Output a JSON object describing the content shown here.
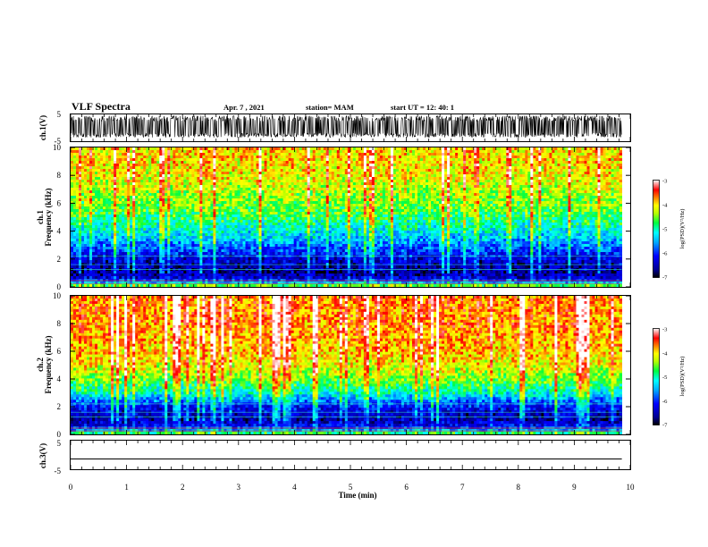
{
  "header": {
    "title": "VLF Spectra",
    "date": "Apr. 7 , 2021",
    "station": "station= MAM",
    "start": "start UT = 12: 40: 1"
  },
  "chart_data": [
    {
      "type": "line",
      "name": "ch1-waveform",
      "ylabel": "ch.1(V)",
      "yticks": [
        "5",
        "-5"
      ],
      "ylim": [
        -5,
        5
      ],
      "xlim": [
        0,
        10
      ],
      "description_of_signal": "dense noisy waveform spanning roughly -3.5 to 4.5 V"
    },
    {
      "type": "heatmap",
      "name": "ch1-spectrogram",
      "ylabel": "ch.1\nFrequency (kHz)",
      "ylabel_top": "ch.1",
      "ylabel_bottom": "Frequency (kHz)",
      "ylim": [
        0,
        10
      ],
      "yticks": [
        "0",
        "2",
        "4",
        "6",
        "8",
        "10"
      ],
      "xlim": [
        0,
        9.85
      ],
      "colorbar": {
        "label": "log(PSD)(V²/Hz)",
        "range": [
          -7,
          -3
        ],
        "ticks": [
          "-3",
          "-4",
          "-5",
          "-6",
          "-7"
        ],
        "colors": [
          "#000080",
          "#0000ff",
          "#00a0ff",
          "#00ffff",
          "#00ff60",
          "#c0ff00",
          "#ffff00",
          "#ff8000",
          "#ff0000",
          "#ffffff"
        ]
      },
      "log_psd_profile": {
        "frequency_khz": [
          0.0,
          0.3,
          0.6,
          1.0,
          1.5,
          2.0,
          2.5,
          3.0,
          3.5,
          4.0,
          4.5,
          5.0,
          5.5,
          6.0,
          7.0,
          8.0,
          9.0,
          10.0
        ],
        "typical_log_psd": [
          -4.2,
          -5.5,
          -6.3,
          -6.6,
          -6.5,
          -6.3,
          -6.0,
          -5.7,
          -5.4,
          -5.2,
          -5.0,
          -4.8,
          -4.6,
          -4.5,
          -4.3,
          -4.1,
          -4.0,
          -4.0
        ]
      }
    },
    {
      "type": "heatmap",
      "name": "ch2-spectrogram",
      "ylabel": "ch.2\nFrequency (kHz)",
      "ylabel_top": "ch.2",
      "ylabel_bottom": "Frequency (kHz)",
      "ylim": [
        0,
        10
      ],
      "yticks": [
        "0",
        "2",
        "4",
        "6",
        "8",
        "10"
      ],
      "xlim": [
        0,
        9.85
      ],
      "colorbar": {
        "label": "log(PSD)(V²/Hz)",
        "range": [
          -7,
          -3
        ],
        "ticks": [
          "-3",
          "-4",
          "-5",
          "-6",
          "-7"
        ],
        "colors": [
          "#000080",
          "#0000ff",
          "#00a0ff",
          "#00ffff",
          "#00ff60",
          "#c0ff00",
          "#ffff00",
          "#ff8000",
          "#ff0000",
          "#ffffff"
        ]
      },
      "log_psd_profile": {
        "frequency_khz": [
          0.0,
          0.3,
          0.6,
          1.0,
          1.5,
          2.0,
          2.5,
          3.0,
          3.5,
          4.0,
          4.5,
          5.0,
          5.5,
          6.0,
          7.0,
          8.0,
          9.0,
          10.0
        ],
        "typical_log_psd": [
          -4.5,
          -5.6,
          -6.2,
          -6.5,
          -6.4,
          -6.1,
          -5.6,
          -5.1,
          -4.8,
          -4.5,
          -4.3,
          -4.1,
          -4.0,
          -3.9,
          -3.8,
          -3.7,
          -3.7,
          -3.7
        ]
      }
    },
    {
      "type": "line",
      "name": "ch3-waveform",
      "ylabel": "ch.3(V)",
      "yticks": [
        "5",
        "-5"
      ],
      "ylim": [
        -5,
        5
      ],
      "xlim": [
        0,
        10
      ],
      "x": [
        0,
        9.85
      ],
      "y": [
        -1.4,
        -1.4
      ]
    }
  ],
  "xaxis": {
    "label": "Time (min)",
    "ticks": [
      "0",
      "1",
      "2",
      "3",
      "4",
      "5",
      "6",
      "7",
      "8",
      "9",
      "10"
    ],
    "range": [
      0,
      10
    ]
  }
}
